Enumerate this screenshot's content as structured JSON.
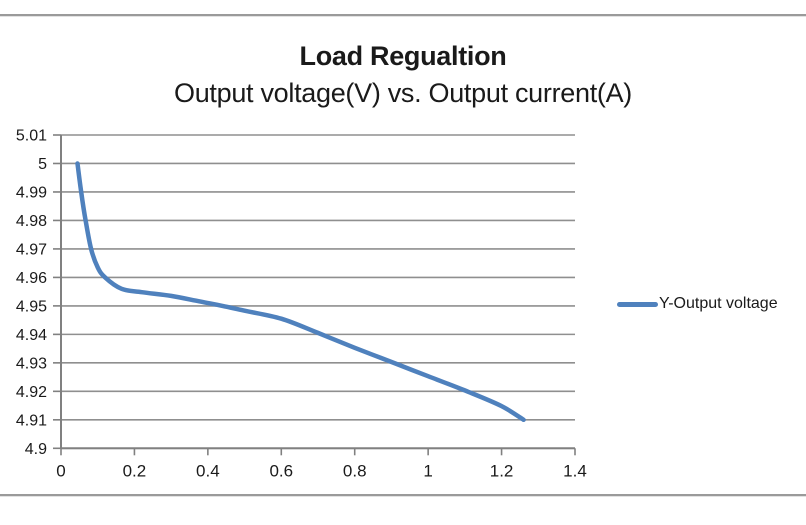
{
  "colors": {
    "series_line": "#4F81BD",
    "gridline": "#8f8f8f",
    "axis": "#808080",
    "text": "#1a1a1a",
    "divider": "#9a9a9a",
    "background": "#ffffff"
  },
  "chart_data": {
    "type": "line",
    "title": "Load Regualtion",
    "subtitle": "Output voltage(V) vs. Output current(A)",
    "xlabel": "",
    "ylabel": "",
    "xlim": [
      0,
      1.4
    ],
    "ylim": [
      4.9,
      5.01
    ],
    "grid": "horizontal",
    "legend_position": "right",
    "x_ticks": [
      {
        "value": 0,
        "label": "0"
      },
      {
        "value": 0.2,
        "label": "0.2"
      },
      {
        "value": 0.4,
        "label": "0.4"
      },
      {
        "value": 0.6,
        "label": "0.6"
      },
      {
        "value": 0.8,
        "label": "0.8"
      },
      {
        "value": 1,
        "label": "1"
      },
      {
        "value": 1.2,
        "label": "1.2"
      },
      {
        "value": 1.4,
        "label": "1.4"
      }
    ],
    "y_ticks": [
      {
        "value": 5.01,
        "label": "5.01"
      },
      {
        "value": 5,
        "label": "5"
      },
      {
        "value": 4.99,
        "label": "4.99"
      },
      {
        "value": 4.98,
        "label": "4.98"
      },
      {
        "value": 4.97,
        "label": "4.97"
      },
      {
        "value": 4.96,
        "label": "4.96"
      },
      {
        "value": 4.95,
        "label": "4.95"
      },
      {
        "value": 4.94,
        "label": "4.94"
      },
      {
        "value": 4.93,
        "label": "4.93"
      },
      {
        "value": 4.92,
        "label": "4.92"
      },
      {
        "value": 4.91,
        "label": "4.91"
      },
      {
        "value": 4.9,
        "label": "4.9"
      }
    ],
    "series": [
      {
        "name": "Y-Output voltage",
        "color": "#4F81BD",
        "x": [
          0.045,
          0.055,
          0.067,
          0.082,
          0.1,
          0.12,
          0.165,
          0.22,
          0.3,
          0.38,
          0.44,
          0.5,
          0.6,
          0.7,
          0.8,
          0.91,
          1.0,
          1.11,
          1.2,
          1.26
        ],
        "y": [
          5.0,
          4.99,
          4.98,
          4.97,
          4.9635,
          4.96,
          4.956,
          4.9548,
          4.9535,
          4.9515,
          4.95,
          4.9483,
          4.9455,
          4.9405,
          4.9353,
          4.9298,
          4.9253,
          4.9198,
          4.9148,
          4.91
        ]
      }
    ]
  }
}
